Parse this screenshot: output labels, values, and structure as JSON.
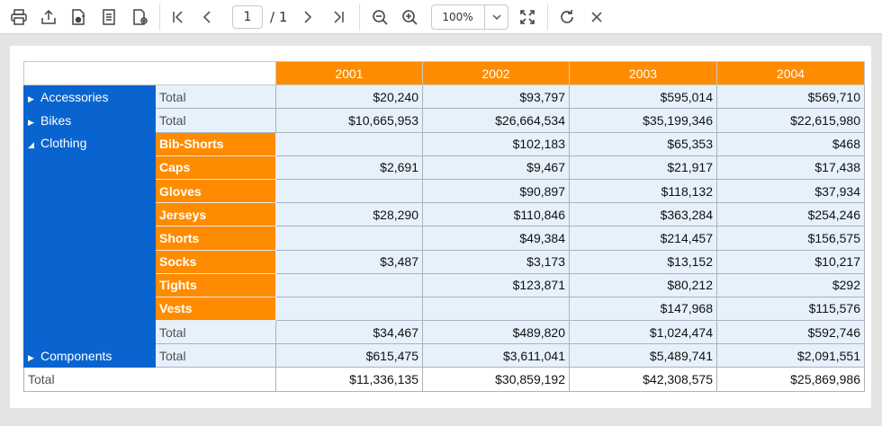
{
  "toolbar": {
    "icons": [
      "print-icon",
      "export-icon",
      "edit-report-icon",
      "document-map-icon",
      "parameters-icon",
      "first-page-icon",
      "previous-page-icon",
      "next-page-icon",
      "last-page-icon",
      "zoom-out-icon",
      "zoom-in-icon",
      "fit-page-icon",
      "refresh-icon",
      "close-icon"
    ],
    "page_current": "1",
    "page_total": "/ 1",
    "zoom_value": "100%"
  },
  "grid": {
    "years": [
      "2001",
      "2002",
      "2003",
      "2004"
    ],
    "total_label": "Total",
    "accessories": {
      "label": "Accessories",
      "total": [
        "$20,240",
        "$93,797",
        "$595,014",
        "$569,710"
      ]
    },
    "bikes": {
      "label": "Bikes",
      "total": [
        "$10,665,953",
        "$26,664,534",
        "$35,199,346",
        "$22,615,980"
      ]
    },
    "clothing": {
      "label": "Clothing",
      "rows": [
        {
          "name": "Bib-Shorts",
          "values": [
            "",
            "$102,183",
            "$65,353",
            "$468"
          ]
        },
        {
          "name": "Caps",
          "values": [
            "$2,691",
            "$9,467",
            "$21,917",
            "$17,438"
          ]
        },
        {
          "name": "Gloves",
          "values": [
            "",
            "$90,897",
            "$118,132",
            "$37,934"
          ]
        },
        {
          "name": "Jerseys",
          "values": [
            "$28,290",
            "$110,846",
            "$363,284",
            "$254,246"
          ]
        },
        {
          "name": "Shorts",
          "values": [
            "",
            "$49,384",
            "$214,457",
            "$156,575"
          ]
        },
        {
          "name": "Socks",
          "values": [
            "$3,487",
            "$3,173",
            "$13,152",
            "$10,217"
          ]
        },
        {
          "name": "Tights",
          "values": [
            "",
            "$123,871",
            "$80,212",
            "$292"
          ]
        },
        {
          "name": "Vests",
          "values": [
            "",
            "",
            "$147,968",
            "$115,576"
          ]
        }
      ],
      "total": [
        "$34,467",
        "$489,820",
        "$1,024,474",
        "$592,746"
      ]
    },
    "components": {
      "label": "Components",
      "total": [
        "$615,475",
        "$3,611,041",
        "$5,489,741",
        "$2,091,551"
      ]
    },
    "grand_total": [
      "$11,336,135",
      "$30,859,192",
      "$42,308,575",
      "$25,869,986"
    ]
  },
  "colors": {
    "header_orange": "#ff8c00",
    "category_blue": "#0a64cf",
    "value_cell": "#e6f1fb"
  }
}
